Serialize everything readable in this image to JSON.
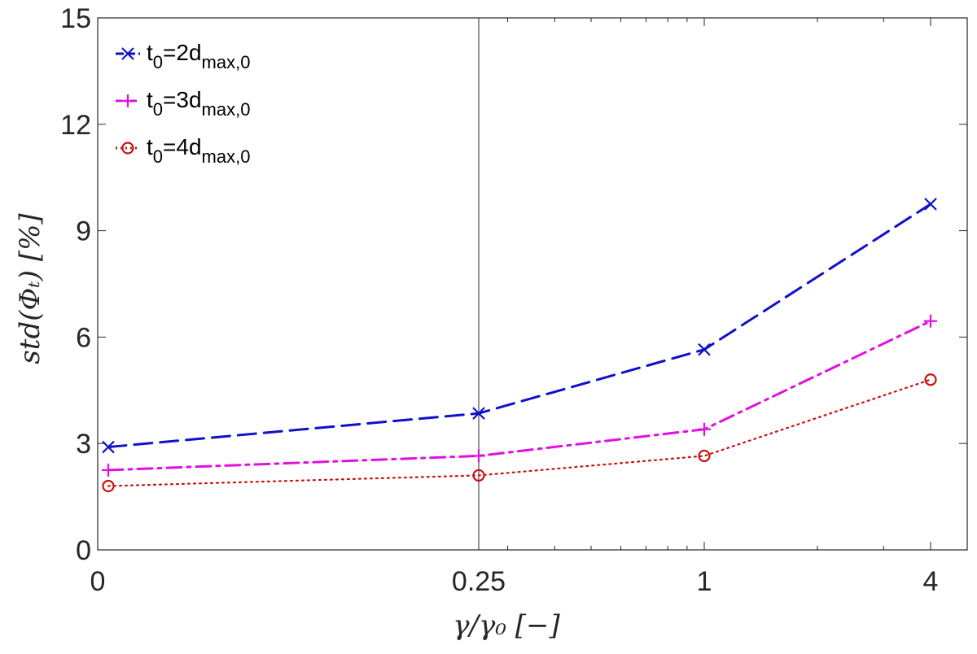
{
  "chart_data": {
    "type": "line",
    "title": "",
    "xlabel": "γ/γ₀ [−]",
    "ylabel": "std(Φₜ) [%]",
    "x_scale": "log2",
    "x_tick_labels": [
      "0",
      "0.25",
      "1",
      "4"
    ],
    "y_tick_labels": [
      "0",
      "3",
      "6",
      "9",
      "12",
      "15"
    ],
    "ylim": [
      0,
      15
    ],
    "grid": "major vertical lines at 0.25",
    "legend": "top-left",
    "categories": [
      "0",
      "0.25",
      "1",
      "4"
    ],
    "series": [
      {
        "name_base": "t",
        "name_base_sub": "0",
        "name_mid": "=2d",
        "name_mid_sub": "max,0",
        "color": "#1010cc",
        "marker": "x",
        "line_style": "dashed",
        "values": [
          2.9,
          3.85,
          5.65,
          9.75
        ]
      },
      {
        "name_base": "t",
        "name_base_sub": "0",
        "name_mid": "=3d",
        "name_mid_sub": "max,0",
        "color": "#e010e0",
        "marker": "+",
        "line_style": "dash-dot",
        "values": [
          2.25,
          2.65,
          3.4,
          6.45
        ]
      },
      {
        "name_base": "t",
        "name_base_sub": "0",
        "name_mid": "=4d",
        "name_mid_sub": "max,0",
        "color": "#cc1010",
        "marker": "o",
        "line_style": "dotted",
        "values": [
          1.8,
          2.1,
          2.65,
          4.8
        ]
      }
    ]
  }
}
